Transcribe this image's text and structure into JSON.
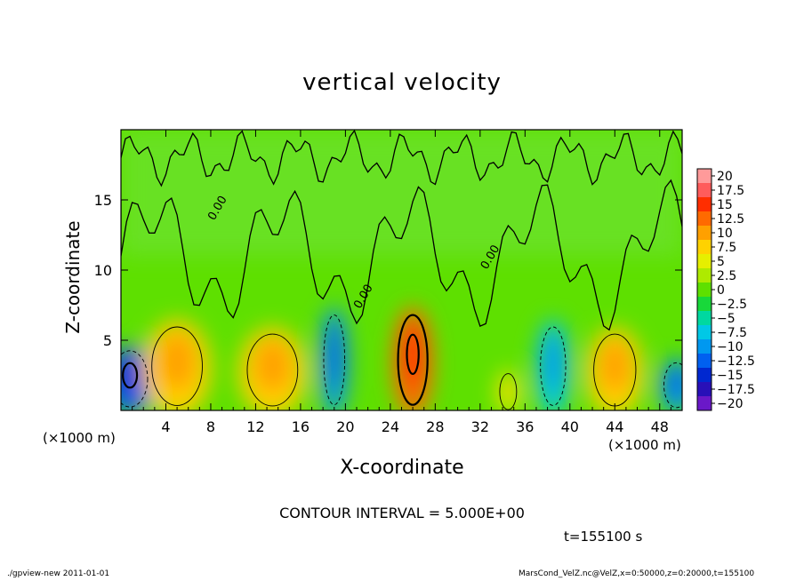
{
  "chart_data": {
    "type": "heatmap",
    "title": "vertical velocity",
    "xlabel": "X-coordinate",
    "ylabel": "Z-coordinate",
    "x_unit": "(×1000 m)",
    "x_ticks": [
      4,
      8,
      12,
      16,
      20,
      24,
      28,
      32,
      36,
      40,
      44,
      48
    ],
    "y_ticks": [
      5,
      10,
      15
    ],
    "xlim": [
      0,
      50
    ],
    "ylim": [
      0,
      20
    ],
    "contour_interval_text": "CONTOUR INTERVAL = 5.000E+00",
    "contour_label": "0.00",
    "time_text": "t=155100 s",
    "colorbar": {
      "labels": [
        "20",
        "17.5",
        "15",
        "12.5",
        "10",
        "7.5",
        "5",
        "2.5",
        "0",
        "−2.5",
        "−5",
        "−7.5",
        "−10",
        "−12.5",
        "−15",
        "−17.5",
        "−20"
      ],
      "colors": [
        "#ff9a9a",
        "#ff5c5c",
        "#ff2e00",
        "#ff6a00",
        "#ffa000",
        "#ffd200",
        "#e6ef00",
        "#aeea00",
        "#5ee000",
        "#18d83a",
        "#00d8a0",
        "#00c8e6",
        "#0098f0",
        "#0060f0",
        "#0028d0",
        "#2810b8",
        "#6a18c8"
      ]
    },
    "cells": [
      {
        "x": 0.8,
        "z": 2.5,
        "w": 4.2,
        "v": -12
      },
      {
        "x": 5.0,
        "z": 3.5,
        "w": 6.0,
        "v": 7
      },
      {
        "x": 13.5,
        "z": 3.2,
        "w": 6.0,
        "v": 6.5
      },
      {
        "x": 19.0,
        "z": 4.0,
        "w": 2.5,
        "v": -9
      },
      {
        "x": 26.0,
        "z": 4.0,
        "w": 3.5,
        "v": 12
      },
      {
        "x": 34.5,
        "z": 1.5,
        "w": 2.0,
        "v": 6
      },
      {
        "x": 38.5,
        "z": 3.5,
        "w": 3.0,
        "v": -8
      },
      {
        "x": 44.0,
        "z": 3.2,
        "w": 5.0,
        "v": 7.5
      },
      {
        "x": 49.5,
        "z": 2.0,
        "w": 3.0,
        "v": -10
      }
    ]
  },
  "footer": {
    "left": "./gpview-new  2011-01-01",
    "right": "MarsCond_VelZ.nc@VelZ,x=0:50000,z=0:20000,t=155100"
  }
}
